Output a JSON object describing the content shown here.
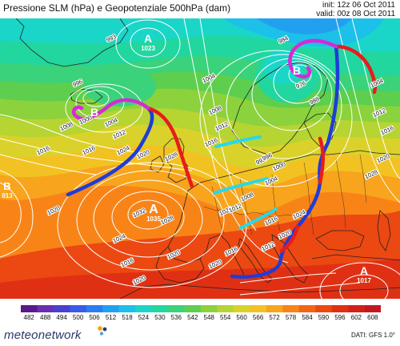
{
  "header": {
    "title": "Pressione SLM (hPa) e Geopotenziale 500hPa (dam)",
    "init": "init: 12z 06 Oct 2011",
    "valid": "valid: 00z 08 Oct 2011"
  },
  "pressure_centers": [
    {
      "type": "A",
      "value": "1023"
    },
    {
      "type": "A",
      "value": "1035"
    },
    {
      "type": "A",
      "value": "1017"
    },
    {
      "type": "B",
      "value": "013"
    },
    {
      "type": "B",
      "value": ""
    },
    {
      "type": "B",
      "value": ""
    }
  ],
  "isobar_labels": [
    "993",
    "996",
    "1000",
    "1004",
    "1008",
    "1012",
    "1016",
    "1020",
    "1024",
    "1028",
    "1032",
    "1016",
    "1020",
    "1024",
    "1028",
    "1024",
    "1020",
    "1012",
    "1016",
    "1020",
    "1004",
    "1008",
    "1012",
    "1016",
    "984",
    "976",
    "988",
    "992",
    "996",
    "1000",
    "1004",
    "1008",
    "1012",
    "1016",
    "1020",
    "1024",
    "1016",
    "1020",
    "1004",
    "1012",
    "1016",
    "1020",
    "1028"
  ],
  "colorbar": {
    "labels": [
      "482",
      "488",
      "494",
      "500",
      "506",
      "512",
      "518",
      "524",
      "530",
      "536",
      "542",
      "548",
      "554",
      "560",
      "566",
      "572",
      "578",
      "584",
      "590",
      "596",
      "602",
      "608"
    ],
    "colors": [
      "#5a1a8a",
      "#6a2fb0",
      "#4b3fd0",
      "#3a5ae8",
      "#2d7cf0",
      "#22a0f0",
      "#1cc0e8",
      "#1ad6c8",
      "#22d6a0",
      "#3ad27a",
      "#5ece4e",
      "#8cd23c",
      "#b6d432",
      "#dad22a",
      "#f2c222",
      "#f8a41c",
      "#f88418",
      "#f46414",
      "#ec4812",
      "#e03014",
      "#d42018",
      "#c41820"
    ]
  },
  "brand": {
    "name": "meteonetwork",
    "dot_colors": [
      "#f5a300",
      "#2a3a6a",
      "#5aa0d8"
    ]
  },
  "credit": "DATI: GFS 1.0°",
  "map_colors": {
    "water_band_1": "#3ad27a",
    "water_band_2": "#5ece4e",
    "land_outline": "#222222",
    "isobar": "#ffffff",
    "cold_front": "#1f3cd8",
    "warm_front": "#e81c1c",
    "occluded_front": "#d828d8",
    "trough_line": "#28d8e8"
  }
}
